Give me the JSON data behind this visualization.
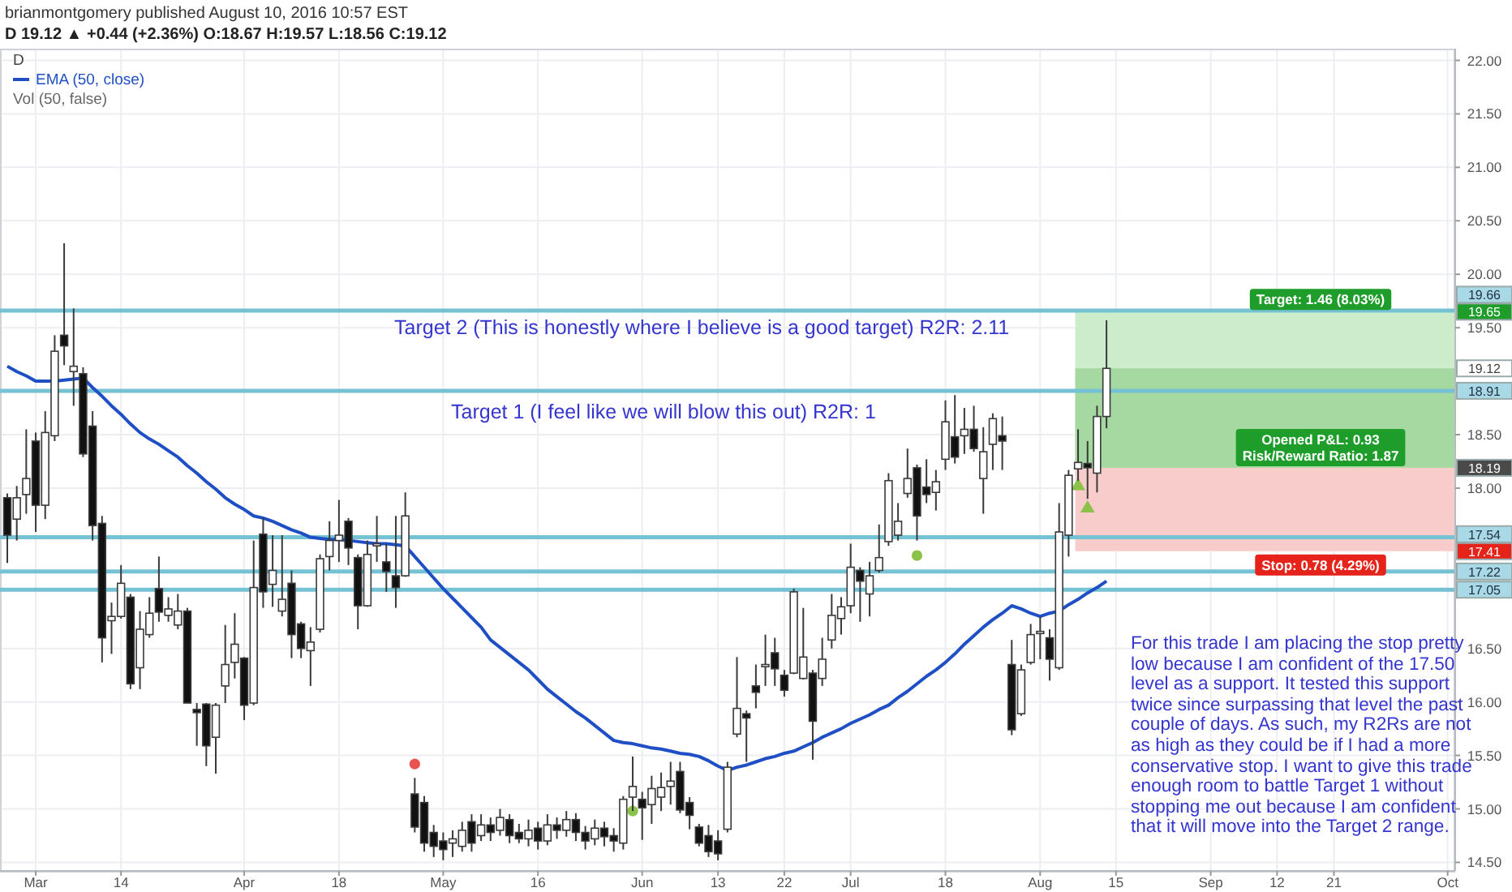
{
  "chart_data": {
    "type": "candlestick",
    "title": "D",
    "categories": [
      null,
      null,
      null,
      "Mar",
      null,
      null,
      null,
      null,
      null,
      null,
      null,
      null,
      "14",
      null,
      null,
      null,
      null,
      null,
      null,
      null,
      null,
      null,
      null,
      null,
      null,
      "Apr",
      null,
      null,
      null,
      null,
      null,
      null,
      null,
      null,
      null,
      "18",
      null,
      null,
      null,
      null,
      null,
      null,
      null,
      null,
      null,
      null,
      "May",
      null,
      null,
      null,
      null,
      null,
      null,
      null,
      null,
      null,
      "16",
      null,
      null,
      null,
      null,
      null,
      null,
      null,
      null,
      null,
      null,
      "Jun",
      null,
      null,
      null,
      null,
      null,
      null,
      null,
      "13",
      null,
      null,
      null,
      null,
      null,
      null,
      "22",
      null,
      null,
      null,
      null,
      null,
      null,
      "Jul",
      null,
      null,
      null,
      null,
      null,
      null,
      null,
      null,
      null,
      "18",
      null,
      null,
      null,
      null,
      null,
      null,
      null,
      null,
      null,
      "Aug",
      null,
      null,
      null,
      null,
      null,
      null,
      null,
      "15",
      null,
      null,
      null,
      null,
      null,
      null,
      null,
      null,
      null,
      "Sep",
      null,
      null,
      null,
      null,
      null,
      null,
      "12",
      null,
      null,
      null,
      null,
      null,
      "21",
      null,
      null,
      null,
      null,
      null,
      null,
      null,
      null,
      null,
      null,
      null,
      "Oct"
    ],
    "ohlc": [
      [
        17.91,
        17.95,
        17.3,
        17.56
      ],
      [
        17.71,
        18.02,
        17.51,
        17.91
      ],
      [
        17.94,
        18.55,
        17.76,
        18.09
      ],
      [
        18.44,
        18.52,
        17.59,
        17.84
      ],
      [
        17.84,
        18.72,
        17.71,
        18.52
      ],
      [
        18.49,
        19.43,
        18.44,
        19.28
      ],
      [
        19.43,
        20.29,
        19.15,
        19.33
      ],
      [
        19.09,
        19.68,
        18.77,
        19.14
      ],
      [
        19.07,
        19.13,
        18.29,
        18.32
      ],
      [
        18.58,
        18.72,
        17.51,
        17.65
      ],
      [
        17.67,
        17.74,
        16.37,
        16.6
      ],
      [
        16.76,
        16.93,
        16.45,
        16.8
      ],
      [
        16.8,
        17.28,
        16.78,
        17.11
      ],
      [
        16.98,
        17.01,
        16.12,
        16.17
      ],
      [
        16.32,
        16.85,
        16.12,
        16.68
      ],
      [
        16.63,
        16.98,
        16.6,
        16.83
      ],
      [
        17.06,
        17.36,
        16.75,
        16.84
      ],
      [
        16.81,
        16.98,
        16.75,
        16.87
      ],
      [
        16.72,
        17.01,
        16.68,
        16.85
      ],
      [
        16.85,
        16.88,
        15.99,
        15.99
      ],
      [
        15.93,
        15.99,
        15.59,
        15.9
      ],
      [
        15.98,
        15.99,
        15.4,
        15.59
      ],
      [
        15.67,
        15.99,
        15.33,
        15.97
      ],
      [
        16.15,
        16.72,
        15.99,
        16.35
      ],
      [
        16.37,
        16.83,
        16.22,
        16.54
      ],
      [
        16.41,
        16.42,
        15.83,
        15.97
      ],
      [
        15.99,
        17.51,
        15.97,
        17.07
      ],
      [
        17.57,
        17.72,
        16.88,
        17.03
      ],
      [
        17.1,
        17.56,
        16.89,
        17.23
      ],
      [
        16.85,
        17.56,
        16.8,
        16.96
      ],
      [
        17.11,
        17.23,
        16.41,
        16.63
      ],
      [
        16.73,
        16.75,
        16.41,
        16.5
      ],
      [
        16.48,
        16.7,
        16.15,
        16.56
      ],
      [
        16.68,
        17.38,
        16.65,
        17.34
      ],
      [
        17.36,
        17.69,
        17.23,
        17.51
      ],
      [
        17.51,
        17.89,
        17.31,
        17.56
      ],
      [
        17.69,
        17.72,
        17.28,
        17.44
      ],
      [
        17.35,
        17.38,
        16.68,
        16.9
      ],
      [
        16.9,
        17.51,
        16.89,
        17.38
      ],
      [
        17.46,
        17.74,
        17.31,
        17.48
      ],
      [
        17.31,
        17.48,
        17.03,
        17.22
      ],
      [
        17.18,
        17.74,
        16.88,
        17.07
      ],
      [
        17.18,
        17.96,
        17.17,
        17.74
      ],
      [
        15.14,
        15.29,
        14.78,
        14.83
      ],
      [
        15.06,
        15.12,
        14.6,
        14.68
      ],
      [
        14.78,
        14.85,
        14.55,
        14.65
      ],
      [
        14.7,
        14.78,
        14.52,
        14.62
      ],
      [
        14.68,
        14.8,
        14.55,
        14.72
      ],
      [
        14.65,
        14.88,
        14.6,
        14.8
      ],
      [
        14.88,
        14.95,
        14.6,
        14.68
      ],
      [
        14.75,
        14.95,
        14.7,
        14.85
      ],
      [
        14.85,
        14.92,
        14.7,
        14.78
      ],
      [
        14.8,
        15.0,
        14.75,
        14.92
      ],
      [
        14.9,
        14.95,
        14.68,
        14.75
      ],
      [
        14.78,
        14.86,
        14.68,
        14.72
      ],
      [
        14.72,
        14.9,
        14.65,
        14.8
      ],
      [
        14.82,
        14.88,
        14.62,
        14.7
      ],
      [
        14.7,
        14.95,
        14.66,
        14.85
      ],
      [
        14.85,
        14.92,
        14.72,
        14.8
      ],
      [
        14.8,
        14.98,
        14.74,
        14.9
      ],
      [
        14.9,
        14.96,
        14.7,
        14.78
      ],
      [
        14.78,
        14.84,
        14.62,
        14.7
      ],
      [
        14.72,
        14.9,
        14.66,
        14.82
      ],
      [
        14.82,
        14.88,
        14.65,
        14.74
      ],
      [
        14.75,
        14.82,
        14.6,
        14.7
      ],
      [
        14.68,
        15.12,
        14.62,
        15.09
      ],
      [
        15.11,
        15.49,
        14.98,
        15.21
      ],
      [
        15.09,
        15.16,
        14.71,
        15.01
      ],
      [
        15.04,
        15.31,
        14.86,
        15.19
      ],
      [
        15.11,
        15.34,
        14.98,
        15.2
      ],
      [
        15.21,
        15.44,
        15.04,
        15.26
      ],
      [
        15.35,
        15.44,
        14.96,
        14.99
      ],
      [
        15.06,
        15.11,
        14.81,
        14.94
      ],
      [
        14.83,
        14.86,
        14.65,
        14.68
      ],
      [
        14.75,
        14.85,
        14.55,
        14.6
      ],
      [
        14.7,
        14.8,
        14.52,
        14.58
      ],
      [
        14.81,
        15.44,
        14.78,
        15.39
      ],
      [
        15.7,
        16.42,
        15.67,
        15.94
      ],
      [
        15.89,
        15.92,
        15.44,
        15.85
      ],
      [
        16.15,
        16.35,
        15.94,
        16.09
      ],
      [
        16.33,
        16.63,
        16.15,
        16.35
      ],
      [
        16.46,
        16.6,
        16.15,
        16.31
      ],
      [
        16.25,
        16.3,
        16.05,
        16.11
      ],
      [
        16.27,
        17.06,
        16.26,
        17.03
      ],
      [
        16.22,
        16.88,
        16.21,
        16.42
      ],
      [
        16.27,
        16.3,
        15.46,
        15.82
      ],
      [
        16.22,
        16.6,
        16.15,
        16.4
      ],
      [
        16.58,
        17.01,
        16.5,
        16.81
      ],
      [
        16.78,
        16.98,
        16.63,
        16.89
      ],
      [
        16.9,
        17.48,
        16.83,
        17.26
      ],
      [
        17.23,
        17.26,
        16.75,
        17.13
      ],
      [
        17.01,
        17.31,
        16.8,
        17.18
      ],
      [
        17.23,
        17.66,
        17.21,
        17.35
      ],
      [
        17.5,
        18.14,
        17.46,
        18.07
      ],
      [
        17.56,
        17.86,
        17.51,
        17.69
      ],
      [
        17.95,
        18.37,
        17.91,
        18.09
      ],
      [
        18.19,
        18.22,
        17.51,
        17.74
      ],
      [
        18.01,
        18.27,
        17.86,
        17.94
      ],
      [
        17.96,
        18.17,
        17.79,
        18.06
      ],
      [
        18.27,
        18.82,
        18.17,
        18.62
      ],
      [
        18.48,
        18.87,
        18.23,
        18.29
      ],
      [
        18.49,
        18.75,
        18.32,
        18.55
      ],
      [
        18.55,
        18.77,
        18.34,
        18.37
      ],
      [
        18.09,
        18.57,
        17.76,
        18.34
      ],
      [
        18.41,
        18.7,
        18.17,
        18.65
      ],
      [
        18.49,
        18.67,
        18.17,
        18.44
      ],
      [
        16.35,
        16.58,
        15.69,
        15.74
      ],
      [
        15.89,
        16.35,
        15.87,
        16.3
      ],
      [
        16.37,
        16.73,
        16.35,
        16.63
      ],
      [
        16.64,
        16.8,
        16.4,
        16.66
      ],
      [
        16.6,
        16.68,
        16.2,
        16.4
      ],
      [
        16.32,
        17.86,
        16.3,
        17.59
      ],
      [
        17.56,
        18.17,
        17.36,
        18.12
      ],
      [
        18.18,
        18.55,
        18.07,
        18.24
      ],
      [
        18.23,
        18.44,
        17.9,
        18.19
      ],
      [
        18.14,
        18.77,
        17.96,
        18.67
      ],
      [
        18.67,
        19.57,
        18.56,
        19.12
      ],
      null,
      null,
      null,
      null,
      null,
      null,
      null,
      null,
      null,
      null,
      null,
      null,
      null,
      null,
      null,
      null,
      null,
      null,
      null,
      null,
      null,
      null,
      null,
      null,
      null,
      null,
      null,
      null,
      null,
      null,
      null,
      null,
      null,
      null,
      null,
      null
    ],
    "series": [
      {
        "type": "line",
        "name": "EMA (50, close)",
        "color": "#1f4fc4",
        "values": [
          19.14,
          19.09,
          19.05,
          19.0,
          19.0,
          19.0,
          19.01,
          19.02,
          19.03,
          18.94,
          18.86,
          18.77,
          18.69,
          18.6,
          18.52,
          18.46,
          18.41,
          18.35,
          18.29,
          18.21,
          18.14,
          18.06,
          17.99,
          17.91,
          17.85,
          17.8,
          17.74,
          17.72,
          17.69,
          17.65,
          17.61,
          17.58,
          17.54,
          17.53,
          17.52,
          17.52,
          17.51,
          17.5,
          17.49,
          17.48,
          17.48,
          17.47,
          17.46,
          17.36,
          17.26,
          17.16,
          17.06,
          16.97,
          16.88,
          16.79,
          16.7,
          16.58,
          16.51,
          16.44,
          16.37,
          16.3,
          16.21,
          16.12,
          16.05,
          15.98,
          15.91,
          15.85,
          15.78,
          15.71,
          15.64,
          15.62,
          15.61,
          15.59,
          15.57,
          15.56,
          15.54,
          15.52,
          15.51,
          15.49,
          15.45,
          15.4,
          15.36,
          15.39,
          15.41,
          15.44,
          15.47,
          15.49,
          15.52,
          15.54,
          15.58,
          15.62,
          15.67,
          15.71,
          15.75,
          15.8,
          15.84,
          15.88,
          15.93,
          15.97,
          16.04,
          16.1,
          16.17,
          16.24,
          16.3,
          16.37,
          16.45,
          16.54,
          16.62,
          16.7,
          16.77,
          16.83,
          16.9,
          16.87,
          16.83,
          16.8,
          16.83,
          16.85,
          16.91,
          16.96,
          17.02,
          17.07,
          17.13,
          null,
          null,
          null,
          null,
          null,
          null,
          null,
          null,
          null,
          null,
          null,
          null,
          null,
          null,
          null,
          null,
          null,
          null,
          null,
          null,
          null,
          null,
          null,
          null,
          null,
          null,
          null,
          null,
          null,
          null,
          null,
          null,
          null,
          null,
          null,
          null
        ]
      },
      {
        "type": "scatter",
        "color": "#8bc34a",
        "marker": "circle",
        "values": [
          null,
          null,
          null,
          null,
          null,
          null,
          null,
          null,
          null,
          null,
          null,
          null,
          null,
          null,
          null,
          null,
          null,
          null,
          null,
          null,
          null,
          null,
          null,
          null,
          null,
          null,
          null,
          null,
          null,
          null,
          null,
          null,
          null,
          null,
          null,
          null,
          null,
          null,
          null,
          null,
          null,
          null,
          null,
          null,
          null,
          null,
          null,
          null,
          null,
          null,
          null,
          null,
          null,
          null,
          null,
          null,
          null,
          null,
          null,
          null,
          null,
          null,
          null,
          null,
          null,
          null,
          14.98,
          null,
          null,
          null,
          null,
          null,
          null,
          null,
          null,
          null,
          null,
          null,
          null,
          null,
          null,
          null,
          null,
          null,
          null,
          null,
          null,
          null,
          null,
          null,
          null,
          null,
          null,
          null,
          null,
          null,
          17.37,
          null,
          null,
          null,
          null,
          null,
          null,
          null,
          null,
          null,
          null,
          null,
          null,
          null,
          null,
          null,
          null,
          null,
          null,
          null,
          null,
          null,
          null,
          null,
          null,
          null,
          null,
          null,
          null,
          null,
          null,
          null,
          null,
          null,
          null,
          null,
          null,
          null,
          null,
          null,
          null,
          null,
          null,
          null,
          null,
          null,
          null,
          null,
          null,
          null,
          null,
          null,
          null,
          null,
          null,
          null,
          null
        ]
      },
      {
        "type": "scatter",
        "color": "#e8524f",
        "marker": "circle",
        "values": [
          null,
          null,
          null,
          null,
          null,
          null,
          null,
          null,
          null,
          null,
          null,
          null,
          null,
          null,
          null,
          null,
          null,
          null,
          null,
          null,
          null,
          null,
          null,
          null,
          null,
          null,
          null,
          null,
          null,
          null,
          null,
          null,
          null,
          null,
          null,
          null,
          null,
          null,
          null,
          null,
          null,
          null,
          null,
          15.42,
          null,
          null,
          null,
          null,
          null,
          null,
          null,
          null,
          null,
          null,
          null,
          null,
          null,
          null,
          null,
          null,
          null,
          null,
          null,
          null,
          null,
          null,
          null,
          null,
          null,
          null,
          null,
          null,
          null,
          null,
          null,
          null,
          null,
          null,
          null,
          null,
          null,
          null,
          null,
          null,
          null,
          null,
          null,
          null,
          null,
          null,
          null,
          null,
          null,
          null,
          null,
          null,
          null,
          null,
          null,
          null,
          null,
          null,
          null,
          null,
          null,
          null,
          null,
          null,
          null,
          null,
          null,
          null,
          null,
          null,
          null,
          null,
          null,
          null,
          null,
          null,
          null,
          null,
          null,
          null,
          null,
          null,
          null,
          null,
          null,
          null,
          null,
          null,
          null,
          null,
          null,
          null,
          null,
          null,
          null,
          null,
          null,
          null,
          null,
          null,
          null,
          null,
          null,
          null,
          null,
          null,
          null,
          null,
          null
        ]
      },
      {
        "type": "scatter",
        "color": "#8bc34a",
        "marker": "triangle",
        "values": [
          null,
          null,
          null,
          null,
          null,
          null,
          null,
          null,
          null,
          null,
          null,
          null,
          null,
          null,
          null,
          null,
          null,
          null,
          null,
          null,
          null,
          null,
          null,
          null,
          null,
          null,
          null,
          null,
          null,
          null,
          null,
          null,
          null,
          null,
          null,
          null,
          null,
          null,
          null,
          null,
          null,
          null,
          null,
          null,
          null,
          null,
          null,
          null,
          null,
          null,
          null,
          null,
          null,
          null,
          null,
          null,
          null,
          null,
          null,
          null,
          null,
          null,
          null,
          null,
          null,
          null,
          null,
          null,
          null,
          null,
          null,
          null,
          null,
          null,
          null,
          null,
          null,
          null,
          null,
          null,
          null,
          null,
          null,
          null,
          null,
          null,
          null,
          null,
          null,
          null,
          null,
          null,
          null,
          null,
          null,
          null,
          null,
          null,
          null,
          null,
          null,
          null,
          null,
          null,
          null,
          null,
          null,
          null,
          null,
          null,
          null,
          null,
          null,
          18.02,
          17.81,
          null,
          null,
          null,
          null,
          null,
          null,
          null,
          null,
          null,
          null,
          null,
          null,
          null,
          null,
          null,
          null,
          null,
          null,
          null,
          null,
          null,
          null,
          null,
          null,
          null,
          null,
          null,
          null,
          null,
          null,
          null,
          null,
          null,
          null,
          null,
          null,
          null,
          null
        ]
      }
    ],
    "ylim": [
      14.42,
      22.11
    ],
    "yticks": [
      {
        "value": 14.5,
        "label": "14.50"
      },
      {
        "value": 15,
        "label": "15.00"
      },
      {
        "value": 15.5,
        "label": "15.50"
      },
      {
        "value": 16,
        "label": "16.00"
      },
      {
        "value": 16.5,
        "label": "16.50"
      },
      {
        "value": 17.41,
        "label": "17.41"
      },
      {
        "value": 18,
        "label": "18.00"
      },
      {
        "value": 18.19,
        "label": "18.19"
      },
      {
        "value": 18.5,
        "label": "18.50"
      },
      {
        "value": 19.12,
        "label": "19.12"
      },
      {
        "value": 19.5,
        "label": "19.50"
      },
      {
        "value": 19.65,
        "label": "19.65"
      },
      {
        "value": 20,
        "label": "20.00"
      },
      {
        "value": 20.5,
        "label": "20.50"
      },
      {
        "value": 21,
        "label": "21.00"
      },
      {
        "value": 21.5,
        "label": "21.50"
      },
      {
        "value": 22,
        "label": "22.00"
      }
    ],
    "ref_lines": [
      {
        "axis": "y",
        "value": 19.66,
        "label": "19.66",
        "color": "#74c2d4"
      },
      {
        "axis": "y",
        "value": 18.91,
        "label": "18.91",
        "color": "#74c2d4"
      },
      {
        "axis": "y",
        "value": 17.54,
        "label": "17.54",
        "color": "#74c2d4"
      },
      {
        "axis": "y",
        "value": 17.22,
        "label": "17.22",
        "color": "#74c2d4"
      },
      {
        "axis": "y",
        "value": 17.05,
        "label": "17.05",
        "color": "#74c2d4"
      }
    ],
    "bands": [
      {
        "axis": "y",
        "from": 18.19,
        "to": 19.65,
        "label": "Target: 1.46 (8.03%)",
        "color": "#cdeccb"
      },
      {
        "axis": "y",
        "from": 17.41,
        "to": 18.19,
        "label": "Stop: 0.78 (4.29%)",
        "color": "#f9cccc"
      },
      {
        "axis": "y",
        "from": 18.19,
        "to": 19.12,
        "label": "Opened P&L: 0.93\nRisk/Reward Ratio: 1.87",
        "color": "#a5d9a1"
      }
    ],
    "annotations": [
      "brianmontgomery published August 10, 2016 10:57 EST",
      "D 19.12 ▲ +0.44 (+2.36%) O:18.67 H:19.57 L:18.56 C:19.12",
      "Vol (50, false)",
      "Target 2 (This is honestly where I believe is a good target) R2R: 2.11",
      "Target 1 (I feel like we will blow this out) R2R: 1",
      "For this trade I am placing the stop pretty low because I am confident of the 17.50 level as a support. It tested this support twice since surpassing that level the past couple of days. As such, my R2Rs are not as high as they could be if I had a more conservative stop. I want to give this trade enough room to battle Target 1 without stopping me out because I am confident that it will move into the Target 2 range."
    ],
    "grid": true,
    "legend": "top left"
  }
}
